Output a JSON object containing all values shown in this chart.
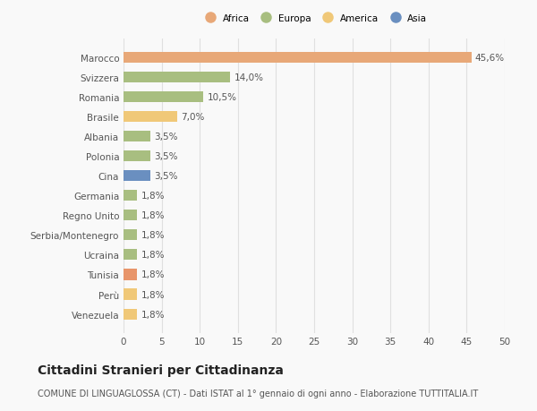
{
  "categories": [
    "Venezuela",
    "Perù",
    "Tunisia",
    "Ucraina",
    "Serbia/Montenegro",
    "Regno Unito",
    "Germania",
    "Cina",
    "Polonia",
    "Albania",
    "Brasile",
    "Romania",
    "Svizzera",
    "Marocco"
  ],
  "values": [
    1.8,
    1.8,
    1.8,
    1.8,
    1.8,
    1.8,
    1.8,
    3.5,
    3.5,
    3.5,
    7.0,
    10.5,
    14.0,
    45.6
  ],
  "labels": [
    "1,8%",
    "1,8%",
    "1,8%",
    "1,8%",
    "1,8%",
    "1,8%",
    "1,8%",
    "3,5%",
    "3,5%",
    "3,5%",
    "7,0%",
    "10,5%",
    "14,0%",
    "45,6%"
  ],
  "colors": [
    "#f0c878",
    "#f0c878",
    "#e8956a",
    "#a8be80",
    "#a8be80",
    "#a8be80",
    "#a8be80",
    "#6a8fc0",
    "#a8be80",
    "#a8be80",
    "#f0c878",
    "#a8be80",
    "#a8be80",
    "#e8a878"
  ],
  "legend_items": [
    {
      "label": "Africa",
      "color": "#e8a878"
    },
    {
      "label": "Europa",
      "color": "#a8be80"
    },
    {
      "label": "America",
      "color": "#f0c878"
    },
    {
      "label": "Asia",
      "color": "#6a8fc0"
    }
  ],
  "xlim": [
    0,
    50
  ],
  "xticks": [
    0,
    5,
    10,
    15,
    20,
    25,
    30,
    35,
    40,
    45,
    50
  ],
  "title": "Cittadini Stranieri per Cittadinanza",
  "subtitle": "COMUNE DI LINGUAGLOSSA (CT) - Dati ISTAT al 1° gennaio di ogni anno - Elaborazione TUTTITALIA.IT",
  "bg_color": "#f9f9f9",
  "grid_color": "#e0e0e0",
  "title_fontsize": 10,
  "subtitle_fontsize": 7,
  "label_fontsize": 7.5,
  "tick_fontsize": 7.5,
  "bar_height": 0.55
}
